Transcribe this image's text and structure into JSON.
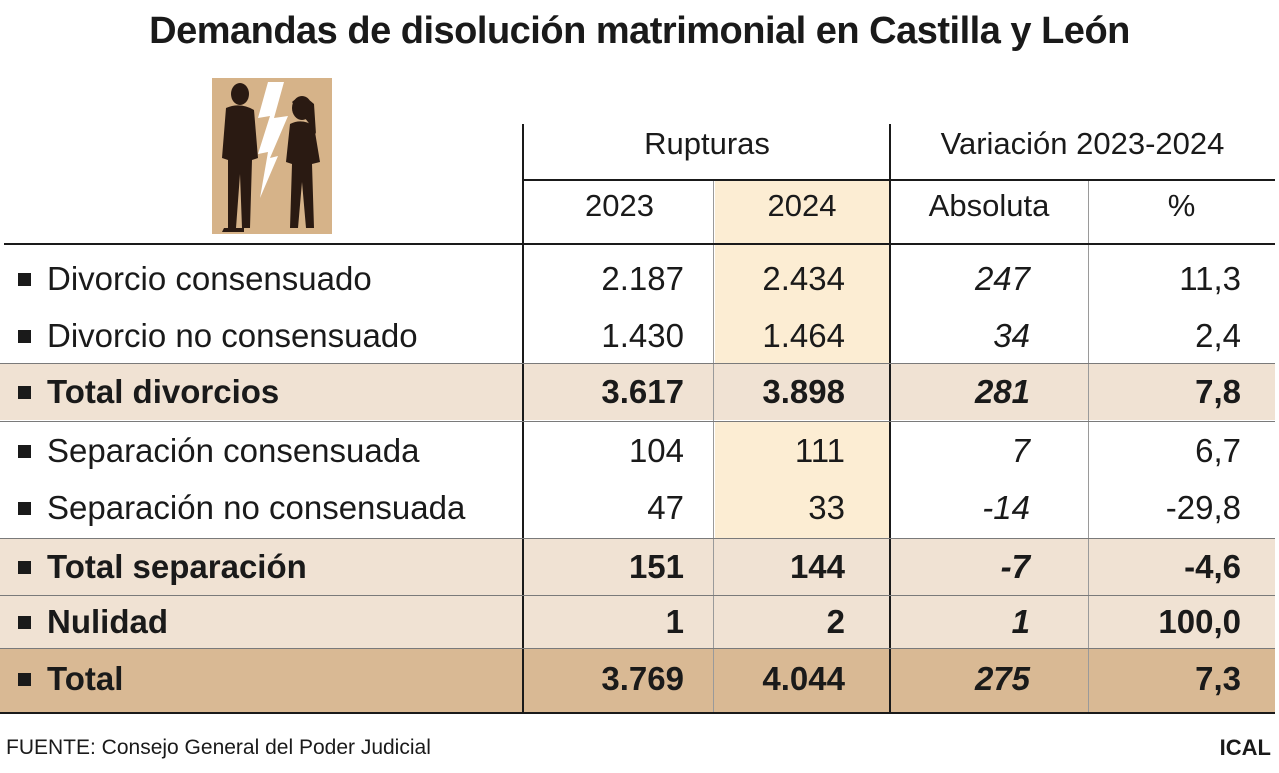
{
  "title": "Demandas de disolución matrimonial en Castilla y León",
  "header": {
    "group_rupturas": "Rupturas",
    "group_variacion": "Variación 2023-2024",
    "col_2023": "2023",
    "col_2024": "2024",
    "col_absoluta": "Absoluta",
    "col_pct": "%"
  },
  "chart_data": {
    "type": "table",
    "columns": [
      "2023",
      "2024",
      "Absoluta",
      "%"
    ],
    "rows": [
      {
        "label": "Divorcio consensuado",
        "v2023": "2.187",
        "v2024": "2.434",
        "abs": "247",
        "pct": "11,3"
      },
      {
        "label": "Divorcio no consensuado",
        "v2023": "1.430",
        "v2024": "1.464",
        "abs": "34",
        "pct": "2,4"
      },
      {
        "label": "Total divorcios",
        "v2023": "3.617",
        "v2024": "3.898",
        "abs": "281",
        "pct": "7,8"
      },
      {
        "label": "Separación consensuada",
        "v2023": "104",
        "v2024": "111",
        "abs": "7",
        "pct": "6,7"
      },
      {
        "label": "Separación no consensuada",
        "v2023": "47",
        "v2024": "33",
        "abs": "-14",
        "pct": "-29,8"
      },
      {
        "label": "Total separación",
        "v2023": "151",
        "v2024": "144",
        "abs": "-7",
        "pct": "-4,6"
      },
      {
        "label": "Nulidad",
        "v2023": "1",
        "v2024": "2",
        "abs": "1",
        "pct": "100,0"
      },
      {
        "label": "Total",
        "v2023": "3.769",
        "v2024": "4.044",
        "abs": "275",
        "pct": "7,3"
      }
    ]
  },
  "footer": {
    "source": "FUENTE: Consejo General del Poder Judicial",
    "brand": "ICAL"
  },
  "colors": {
    "highlight_2024": "#fcedd3",
    "total_row": "#f0e2d3",
    "grand_total_row": "#d9b994",
    "illustration_bg": "#d6b389"
  }
}
